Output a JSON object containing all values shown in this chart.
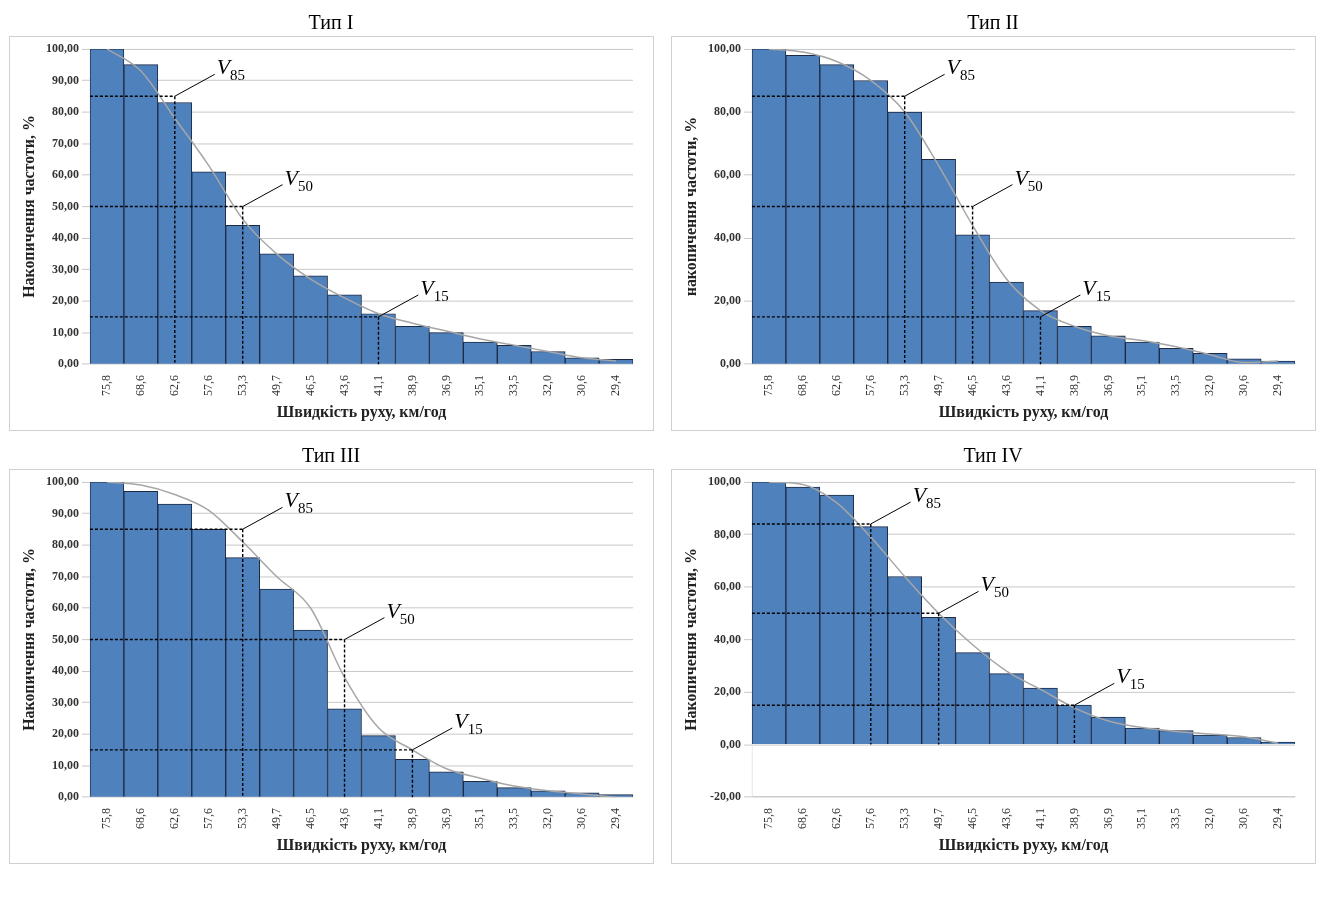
{
  "chart_data": [
    {
      "type": "bar",
      "title": "Тип I",
      "xlabel": "Швидкість руху, км/год",
      "ylabel": "Накопичення частоти, %",
      "categories": [
        "75,8",
        "68,6",
        "62,6",
        "57,6",
        "53,3",
        "49,7",
        "46,5",
        "43,6",
        "41,1",
        "38,9",
        "36,9",
        "35,1",
        "33,5",
        "32,0",
        "30,6",
        "29,4"
      ],
      "series": [
        {
          "color": "#4f81bd",
          "values": [
            100,
            95,
            83,
            61,
            44,
            35,
            28,
            22,
            16,
            12,
            10,
            7,
            6,
            4,
            2,
            1.5
          ]
        },
        {
          "type": "line",
          "color": "#a6a6a6",
          "values": [
            100,
            93,
            78,
            63,
            46,
            35,
            27,
            21,
            16,
            13,
            10.5,
            8,
            6,
            4,
            2,
            1
          ]
        }
      ],
      "ylim": [
        0,
        100
      ],
      "yticks": [
        {
          "value": 0,
          "label": "0,00"
        },
        {
          "value": 10,
          "label": "10,00"
        },
        {
          "value": 20,
          "label": "20,00"
        },
        {
          "value": 30,
          "label": "30,00"
        },
        {
          "value": 40,
          "label": "40,00"
        },
        {
          "value": 50,
          "label": "50,00"
        },
        {
          "value": 60,
          "label": "60,00"
        },
        {
          "value": 70,
          "label": "70,00"
        },
        {
          "value": 80,
          "label": "80,00"
        },
        {
          "value": 90,
          "label": "90,00"
        },
        {
          "value": 100,
          "label": "100,00"
        }
      ],
      "grid": "y",
      "legend": false,
      "marker": "none",
      "ref_lines": [
        {
          "axis": "y",
          "value": 85,
          "label": "V$_{85}$",
          "line_style": "dotted",
          "color": "#000000"
        },
        {
          "axis": "y",
          "value": 50,
          "label": "V$_{50}$",
          "line_style": "dotted",
          "color": "#000000"
        },
        {
          "axis": "y",
          "value": 15,
          "label": "V$_{15}$",
          "line_style": "dotted",
          "color": "#000000"
        },
        {
          "axis": "x",
          "value": "62,6",
          "label": null,
          "line_style": "dotted",
          "color": "#000000"
        },
        {
          "axis": "x",
          "value": "53,3",
          "label": null,
          "line_style": "dotted",
          "color": "#000000"
        },
        {
          "axis": "x",
          "value": "41,1",
          "label": null,
          "line_style": "dotted",
          "color": "#000000"
        }
      ]
    },
    {
      "type": "bar",
      "title": "Тип II",
      "xlabel": "Швидкість руху, км/год",
      "ylabel": "накопичення частоти, %",
      "categories": [
        "75,8",
        "68,6",
        "62,6",
        "57,6",
        "53,3",
        "49,7",
        "46,5",
        "43,6",
        "41,1",
        "38,9",
        "36,9",
        "35,1",
        "33,5",
        "32,0",
        "30,6",
        "29,4"
      ],
      "series": [
        {
          "color": "#4f81bd",
          "values": [
            100,
            98,
            95,
            90,
            80,
            65,
            41,
            26,
            17,
            12,
            9,
            7,
            5,
            3.4,
            1.7,
            1
          ]
        },
        {
          "type": "line",
          "color": "#a6a6a6",
          "values": [
            100,
            99,
            96,
            90,
            80,
            63,
            44,
            27,
            17,
            12,
            9,
            7.5,
            5.5,
            3,
            0.5,
            1
          ]
        }
      ],
      "ylim": [
        0,
        100
      ],
      "yticks": [
        {
          "value": 0,
          "label": "0,00"
        },
        {
          "value": 20,
          "label": "20,00"
        },
        {
          "value": 40,
          "label": "40,00"
        },
        {
          "value": 60,
          "label": "60,00"
        },
        {
          "value": 80,
          "label": "80,00"
        },
        {
          "value": 100,
          "label": "100,00"
        }
      ],
      "grid": "y",
      "legend": false,
      "marker": "none",
      "ref_lines": [
        {
          "axis": "y",
          "value": 85,
          "label": "V$_{85}$",
          "line_style": "dotted",
          "color": "#000000"
        },
        {
          "axis": "y",
          "value": 50,
          "label": "V$_{50}$",
          "line_style": "dotted",
          "color": "#000000"
        },
        {
          "axis": "y",
          "value": 15,
          "label": "V$_{15}$",
          "line_style": "dotted",
          "color": "#000000"
        },
        {
          "axis": "x",
          "value": "53,3",
          "label": null,
          "line_style": "dotted",
          "color": "#000000"
        },
        {
          "axis": "x",
          "value": "46,5",
          "label": null,
          "line_style": "dotted",
          "color": "#000000"
        },
        {
          "axis": "x",
          "value": "41,1",
          "label": null,
          "line_style": "dotted",
          "color": "#000000"
        }
      ]
    },
    {
      "type": "bar",
      "title": "Тип III",
      "xlabel": "Швидкість руху, км/год",
      "ylabel": "Накопичення частоти, %",
      "categories": [
        "75,8",
        "68,6",
        "62,6",
        "57,6",
        "53,3",
        "49,7",
        "46,5",
        "43,6",
        "41,1",
        "38,9",
        "36,9",
        "35,1",
        "33,5",
        "32,0",
        "30,6",
        "29,4"
      ],
      "series": [
        {
          "color": "#4f81bd",
          "values": [
            100,
            97,
            93,
            85,
            76,
            66,
            53,
            28,
            19.5,
            12,
            8,
            5,
            3,
            2,
            1.4,
            0.8
          ]
        },
        {
          "type": "line",
          "color": "#a6a6a6",
          "values": [
            100,
            99,
            96,
            91,
            81,
            70,
            60,
            38,
            22,
            15,
            9,
            6,
            3.5,
            2,
            1,
            0
          ]
        }
      ],
      "ylim": [
        0,
        100
      ],
      "yticks": [
        {
          "value": 0,
          "label": "0,00"
        },
        {
          "value": 10,
          "label": "10,00"
        },
        {
          "value": 20,
          "label": "20,00"
        },
        {
          "value": 30,
          "label": "30,00"
        },
        {
          "value": 40,
          "label": "40,00"
        },
        {
          "value": 50,
          "label": "50,00"
        },
        {
          "value": 60,
          "label": "60,00"
        },
        {
          "value": 70,
          "label": "70,00"
        },
        {
          "value": 80,
          "label": "80,00"
        },
        {
          "value": 90,
          "label": "90,00"
        },
        {
          "value": 100,
          "label": "100,00"
        }
      ],
      "grid": "y",
      "legend": false,
      "marker": "none",
      "ref_lines": [
        {
          "axis": "y",
          "value": 85,
          "label": "V$_{85}$",
          "line_style": "dotted",
          "color": "#000000"
        },
        {
          "axis": "y",
          "value": 50,
          "label": "V$_{50}$",
          "line_style": "dotted",
          "color": "#000000"
        },
        {
          "axis": "y",
          "value": 15,
          "label": "V$_{15}$",
          "line_style": "dotted",
          "color": "#000000"
        },
        {
          "axis": "x",
          "value": "53,3",
          "label": null,
          "line_style": "dotted",
          "color": "#000000"
        },
        {
          "axis": "x",
          "value": "43,6",
          "label": null,
          "line_style": "dotted",
          "color": "#000000"
        },
        {
          "axis": "x",
          "value": "38,9",
          "label": null,
          "line_style": "dotted",
          "color": "#000000"
        }
      ]
    },
    {
      "type": "bar",
      "title": "Тип IV",
      "xlabel": "Швидкість руху, км/год",
      "ylabel": "Накопичення частоти, %",
      "categories": [
        "75,8",
        "68,6",
        "62,6",
        "57,6",
        "53,3",
        "49,7",
        "46,5",
        "43,6",
        "41,1",
        "38,9",
        "36,9",
        "35,1",
        "33,5",
        "32,0",
        "30,6",
        "29,4"
      ],
      "series": [
        {
          "color": "#4f81bd",
          "values": [
            100,
            98,
            95,
            83,
            64,
            48.5,
            35,
            27,
            21.5,
            15,
            10.5,
            6.3,
            5.3,
            3.6,
            2.7,
            1
          ]
        },
        {
          "type": "line",
          "color": "#a6a6a6",
          "values": [
            100,
            99,
            92,
            79,
            64,
            50,
            38,
            28,
            21,
            14,
            9,
            6.5,
            5,
            4,
            3,
            0.5
          ]
        }
      ],
      "ylim": [
        -20,
        100
      ],
      "yticks": [
        {
          "value": -20,
          "label": "-20,00"
        },
        {
          "value": 0,
          "label": "0,00"
        },
        {
          "value": 20,
          "label": "20,00"
        },
        {
          "value": 40,
          "label": "40,00"
        },
        {
          "value": 60,
          "label": "60,00"
        },
        {
          "value": 80,
          "label": "80,00"
        },
        {
          "value": 100,
          "label": "100,00"
        }
      ],
      "grid": "y",
      "legend": false,
      "marker": "none",
      "ref_lines": [
        {
          "axis": "y",
          "value": 84,
          "label": "V$_{85}$",
          "line_style": "dotted",
          "color": "#000000"
        },
        {
          "axis": "y",
          "value": 50,
          "label": "V$_{50}$",
          "line_style": "dotted",
          "color": "#000000"
        },
        {
          "axis": "y",
          "value": 15,
          "label": "V$_{15}$",
          "line_style": "dotted",
          "color": "#000000"
        },
        {
          "axis": "x",
          "value": "57,6",
          "label": null,
          "line_style": "dotted",
          "color": "#000000"
        },
        {
          "axis": "x",
          "value": "49,7",
          "label": null,
          "line_style": "dotted",
          "color": "#000000"
        },
        {
          "axis": "x",
          "value": "38,9",
          "label": null,
          "line_style": "dotted",
          "color": "#000000"
        }
      ]
    }
  ]
}
